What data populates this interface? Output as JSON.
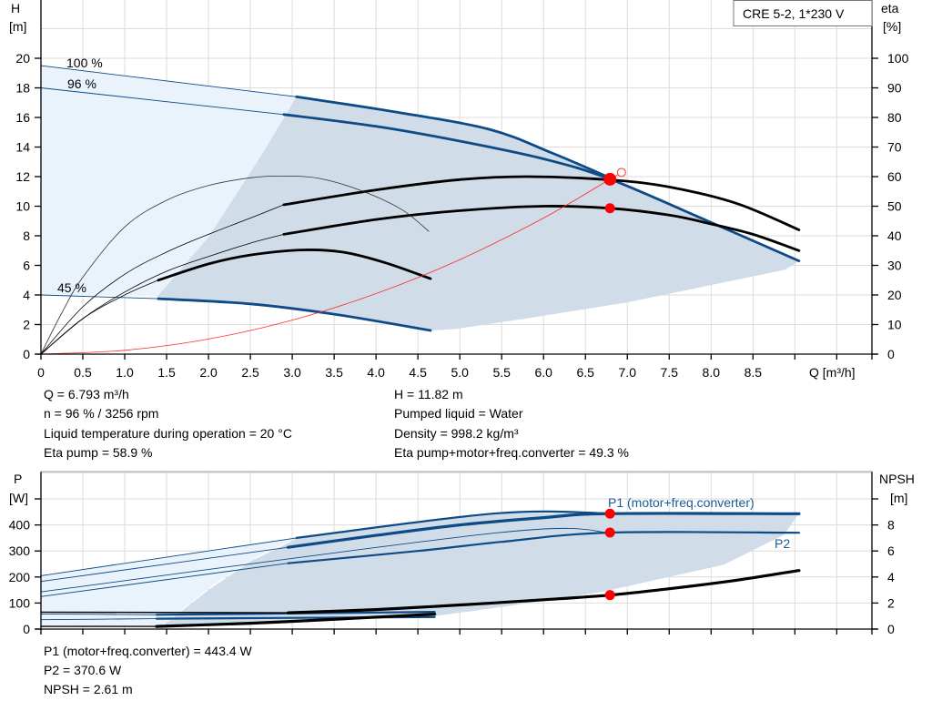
{
  "chart_data": [
    {
      "type": "line",
      "title_box": "CRE 5-2, 1*230 V",
      "xlabel": "Q [m³/h]",
      "ylabel_left": [
        "H",
        "[m]"
      ],
      "ylabel_right": [
        "eta",
        "[%]"
      ],
      "xlim": [
        0,
        9.92
      ],
      "ylim_left": [
        0,
        23.94
      ],
      "ylim_right": [
        0,
        119.7
      ],
      "x_ticks": [
        "0",
        "0.5",
        "1.0",
        "1.5",
        "2.0",
        "2.5",
        "3.0",
        "3.5",
        "4.0",
        "4.5",
        "5.0",
        "5.5",
        "6.0",
        "6.5",
        "7.0",
        "7.5",
        "8.0",
        "8.5"
      ],
      "y_ticks_left": [
        "0",
        "2",
        "4",
        "6",
        "8",
        "10",
        "12",
        "14",
        "16",
        "18",
        "20"
      ],
      "y_ticks_right": [
        "0",
        "10",
        "20",
        "30",
        "40",
        "50",
        "60",
        "70",
        "80",
        "90",
        "100"
      ],
      "grid": true,
      "colors": {
        "head": "#0d4a86",
        "efficiency": "#000000",
        "system": "#ff0000",
        "duty_point": "#ff0000",
        "region_extended": "#eaf3fc",
        "region_operating": "#d0dce7"
      },
      "curve_labels": [
        {
          "text": "100 %",
          "curve": "H 100 %"
        },
        {
          "text": "96 %",
          "curve": "H 96 %"
        },
        {
          "text": "45 %",
          "curve": "H 45 %"
        }
      ],
      "regions": [
        {
          "kind": "extended",
          "points": [
            [
              0,
              19.5
            ],
            [
              3.05,
              17.4
            ],
            [
              2.66,
              13.7
            ],
            [
              2.0,
              7.9
            ],
            [
              1.39,
              3.9
            ],
            [
              0,
              4.0
            ]
          ]
        },
        {
          "kind": "operating",
          "points": [
            [
              3.05,
              17.4
            ],
            [
              4.2,
              16.4
            ],
            [
              5.35,
              15.2
            ],
            [
              6.1,
              13.6
            ],
            [
              6.8,
              11.9
            ],
            [
              8,
              8.9
            ],
            [
              9.05,
              6.3
            ],
            [
              9.0,
              6.1
            ],
            [
              8.88,
              5.7
            ],
            [
              7.0,
              3.5
            ],
            [
              5.78,
              2.4
            ],
            [
              4.95,
              1.7
            ],
            [
              4.65,
              1.6
            ],
            [
              3.5,
              2.7
            ],
            [
              2.5,
              3.4
            ],
            [
              1.4,
              3.75
            ],
            [
              1.39,
              3.9
            ],
            [
              2.0,
              7.9
            ],
            [
              2.66,
              13.7
            ]
          ]
        }
      ],
      "series": [
        {
          "id": "H 100 %",
          "axis": "left",
          "kind": "head",
          "extended": [
            [
              0,
              19.5
            ],
            [
              3.05,
              17.4
            ]
          ],
          "operating": [
            [
              3.05,
              17.4
            ],
            [
              4.2,
              16.4
            ],
            [
              5.35,
              15.2
            ],
            [
              6.1,
              13.6
            ],
            [
              6.8,
              11.9
            ]
          ]
        },
        {
          "id": "H 96 %",
          "axis": "left",
          "kind": "head",
          "extended": [
            [
              0,
              18
            ],
            [
              2.9,
              16.2
            ]
          ],
          "operating": [
            [
              2.9,
              16.2
            ],
            [
              4,
              15.4
            ],
            [
              5,
              14.4
            ],
            [
              6,
              13.2
            ],
            [
              6.8,
              11.82
            ],
            [
              8,
              8.9
            ],
            [
              9.05,
              6.3
            ]
          ]
        },
        {
          "id": "H 45 %",
          "axis": "left",
          "kind": "head",
          "extended": [
            [
              0,
              4.0
            ],
            [
              1.4,
              3.75
            ]
          ],
          "operating": [
            [
              1.4,
              3.75
            ],
            [
              2.5,
              3.4
            ],
            [
              3.5,
              2.7
            ],
            [
              4.65,
              1.6
            ]
          ]
        },
        {
          "id": "eta pump 96 %",
          "axis": "right",
          "kind": "efficiency",
          "extended": [
            [
              0,
              0
            ],
            [
              0.5,
              16
            ],
            [
              1,
              27
            ],
            [
              1.5,
              34.5
            ],
            [
              2,
              40.5
            ],
            [
              2.5,
              46
            ],
            [
              2.9,
              50.5
            ]
          ],
          "operating": [
            [
              2.9,
              50.5
            ],
            [
              4,
              55.5
            ],
            [
              5,
              59
            ],
            [
              5.8,
              60
            ],
            [
              6.8,
              58.9
            ],
            [
              7.5,
              56.5
            ],
            [
              8.3,
              51
            ],
            [
              9.05,
              42
            ]
          ]
        },
        {
          "id": "eta total 96 %",
          "axis": "right",
          "kind": "efficiency",
          "extended": [
            [
              0,
              0
            ],
            [
              0.5,
              12
            ],
            [
              1,
              21
            ],
            [
              1.5,
              28
            ],
            [
              2,
              33
            ],
            [
              2.5,
              37.5
            ],
            [
              2.9,
              40.5
            ]
          ],
          "operating": [
            [
              2.9,
              40.5
            ],
            [
              4,
              45.5
            ],
            [
              5,
              48.5
            ],
            [
              6,
              50
            ],
            [
              6.8,
              49.3
            ],
            [
              7.5,
              47
            ],
            [
              8,
              44
            ],
            [
              8.5,
              40.5
            ],
            [
              9.05,
              35
            ]
          ]
        },
        {
          "id": "eta 45 %",
          "axis": "right",
          "kind": "efficiency",
          "extended": [
            [
              0,
              0
            ],
            [
              0.5,
              12
            ],
            [
              1,
              20
            ],
            [
              1.4,
              25
            ]
          ],
          "operating": [
            [
              1.4,
              25
            ],
            [
              2,
              30.5
            ],
            [
              2.5,
              33.5
            ],
            [
              3.1,
              35.2
            ],
            [
              3.6,
              34.5
            ],
            [
              4.1,
              31
            ],
            [
              4.65,
              25.5
            ]
          ]
        },
        {
          "id": "eta pump 45 %",
          "axis": "right",
          "kind": "efficiency-thin",
          "extended": [
            [
              0,
              0
            ],
            [
              0.25,
              14
            ],
            [
              0.5,
              26
            ],
            [
              1,
              43
            ],
            [
              1.5,
              52
            ],
            [
              2,
              57
            ],
            [
              2.5,
              59.6
            ],
            [
              2.85,
              60.2
            ],
            [
              3.3,
              59.5
            ],
            [
              3.8,
              55.5
            ],
            [
              4.3,
              49
            ],
            [
              4.63,
              41.5
            ]
          ],
          "operating": []
        },
        {
          "id": "system curve",
          "axis": "left",
          "kind": "system",
          "extended": [
            [
              0,
              0
            ],
            [
              1,
              0.26
            ],
            [
              2,
              1.02
            ],
            [
              3,
              2.3
            ],
            [
              4,
              4.09
            ],
            [
              5,
              6.39
            ],
            [
              6,
              9.2
            ],
            [
              6.793,
              11.82
            ],
            [
              6.93,
              12.28
            ]
          ],
          "operating": []
        }
      ],
      "points": [
        {
          "kind": "duty",
          "axis": "left",
          "x": 6.793,
          "y": 11.82,
          "size": "large"
        },
        {
          "kind": "duty",
          "axis": "right",
          "x": 6.793,
          "y": 49.3,
          "size": "small"
        },
        {
          "kind": "requested",
          "axis": "left",
          "x": 6.93,
          "y": 12.28,
          "size": "hollow"
        }
      ]
    },
    {
      "type": "line",
      "ylabel_left": [
        "P",
        "[W]"
      ],
      "ylabel_right": [
        "NPSH",
        "[m]"
      ],
      "xlim": [
        0,
        9.92
      ],
      "ylim_left": [
        0,
        605
      ],
      "ylim_right": [
        0,
        12.1
      ],
      "y_ticks_left": [
        "0",
        "100",
        "200",
        "300",
        "400"
      ],
      "y_ticks_right": [
        "0",
        "2",
        "4",
        "6",
        "8"
      ],
      "grid": true,
      "curve_labels": [
        {
          "text": "P1 (motor+freq.converter)",
          "curve": "P1 96 %"
        },
        {
          "text": "P2",
          "curve": "P2 96 %"
        }
      ],
      "regions": [
        {
          "kind": "extended",
          "points": [
            [
              0,
              205
            ],
            [
              3.05,
              350
            ],
            [
              2.6,
              280
            ],
            [
              2.1,
              180
            ],
            [
              1.7,
              80
            ],
            [
              1.45,
              15
            ],
            [
              0,
              10
            ]
          ]
        },
        {
          "kind": "operating",
          "points": [
            [
              3.05,
              350
            ],
            [
              5.45,
              445
            ],
            [
              9.05,
              443
            ],
            [
              8.87,
              362
            ],
            [
              8.15,
              247
            ],
            [
              6.7,
              143
            ],
            [
              5.5,
              85
            ],
            [
              4.7,
              50
            ],
            [
              3.0,
              28
            ],
            [
              1.45,
              12
            ],
            [
              1.6,
              50
            ],
            [
              2.0,
              150
            ],
            [
              2.5,
              260
            ],
            [
              2.95,
              330
            ]
          ]
        }
      ],
      "series": [
        {
          "id": "P1 100 %",
          "axis": "left",
          "kind": "power",
          "extended": [
            [
              0,
              205
            ],
            [
              3.05,
              350
            ]
          ],
          "operating": [
            [
              3.05,
              350
            ],
            [
              5.45,
              445
            ],
            [
              6.8,
              444
            ]
          ]
        },
        {
          "id": "P1 96 %",
          "axis": "left",
          "kind": "power-bold",
          "extended": [
            [
              0,
              183
            ],
            [
              2.95,
              314
            ]
          ],
          "operating": [
            [
              2.95,
              314
            ],
            [
              4,
              360
            ],
            [
              5,
              400
            ],
            [
              6,
              428
            ],
            [
              6.793,
              443.4
            ],
            [
              9.05,
              443
            ]
          ]
        },
        {
          "id": "P2 100 %",
          "axis": "left",
          "kind": "power",
          "extended": [
            [
              0,
              143
            ],
            [
              5.45,
              370
            ],
            [
              6.8,
              370.6
            ]
          ],
          "operating": []
        },
        {
          "id": "P2 96 %",
          "axis": "left",
          "kind": "power",
          "extended": [
            [
              0,
              125
            ],
            [
              2.95,
              253
            ]
          ],
          "operating": [
            [
              2.95,
              253
            ],
            [
              4.5,
              300
            ],
            [
              5.5,
              335
            ],
            [
              6.793,
              370.6
            ],
            [
              9.05,
              370
            ]
          ]
        },
        {
          "id": "P1 45 %",
          "axis": "left",
          "kind": "power",
          "extended": [
            [
              0,
              58
            ],
            [
              1.38,
              55
            ]
          ],
          "operating": [
            [
              1.38,
              55
            ],
            [
              3,
              60
            ],
            [
              4.7,
              66
            ]
          ]
        },
        {
          "id": "P2 45 %",
          "axis": "left",
          "kind": "power",
          "extended": [
            [
              0,
              36
            ],
            [
              1.38,
              40
            ]
          ],
          "operating": [
            [
              1.38,
              40
            ],
            [
              4.7,
              46
            ]
          ]
        },
        {
          "id": "NPSH 96 %",
          "axis": "right",
          "kind": "npsh",
          "extended": [
            [
              0,
              1.3
            ],
            [
              2.95,
              1.25
            ]
          ],
          "operating": [
            [
              2.95,
              1.25
            ],
            [
              4,
              1.5
            ],
            [
              5,
              1.85
            ],
            [
              6,
              2.25
            ],
            [
              6.793,
              2.61
            ],
            [
              7.5,
              3.1
            ],
            [
              8.3,
              3.75
            ],
            [
              9.05,
              4.5
            ]
          ]
        },
        {
          "id": "NPSH 45 %",
          "axis": "right",
          "kind": "npsh",
          "extended": [
            [
              0,
              0.2
            ],
            [
              1.38,
              0.2
            ]
          ],
          "operating": [
            [
              1.38,
              0.2
            ],
            [
              2.5,
              0.45
            ],
            [
              3.5,
              0.75
            ],
            [
              4.7,
              1.15
            ]
          ]
        }
      ],
      "points": [
        {
          "kind": "duty",
          "axis": "left",
          "x": 6.793,
          "y": 443.4,
          "size": "small"
        },
        {
          "kind": "duty",
          "axis": "left",
          "x": 6.793,
          "y": 370.6,
          "size": "small"
        },
        {
          "kind": "duty",
          "axis": "right",
          "x": 6.793,
          "y": 2.61,
          "size": "small"
        }
      ]
    }
  ],
  "readout_top": {
    "left": [
      "Q = 6.793 m³/h",
      "n = 96 % / 3256 rpm",
      "Liquid temperature during operation = 20 °C",
      "Eta pump = 58.9 %"
    ],
    "right": [
      "H = 11.82 m",
      "Pumped liquid = Water",
      "Density = 998.2 kg/m³",
      "Eta pump+motor+freq.converter = 49.3 %"
    ]
  },
  "readout_bottom": [
    "P1 (motor+freq.converter) = 443.4 W",
    "P2 = 370.6 W",
    "NPSH = 2.61 m"
  ]
}
